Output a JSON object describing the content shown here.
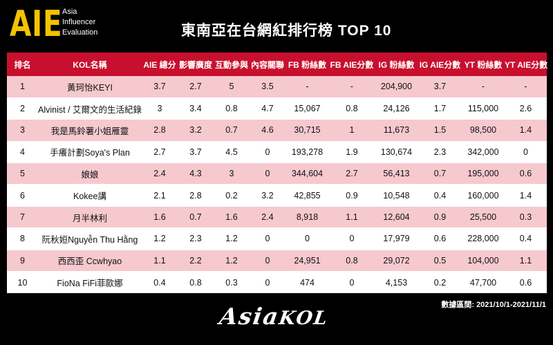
{
  "logo": {
    "mark": "AIE",
    "line1": "Asia",
    "line2": "Influencer",
    "line3": "Evaluation"
  },
  "title": "東南亞在台網紅排行榜 TOP 10",
  "table": {
    "headers": [
      "排名",
      "KOL名稱",
      "AIE 總分",
      "影響廣度",
      "互動參與",
      "內容關聯",
      "FB 粉絲數",
      "FB AIE分數",
      "IG 粉絲數",
      "IG AIE分數",
      "YT 粉絲數",
      "YT AIE分數"
    ],
    "rows": [
      [
        "1",
        "黃珂怡KEYI",
        "3.7",
        "2.7",
        "5",
        "3.5",
        "-",
        "-",
        "204,900",
        "3.7",
        "-",
        "-"
      ],
      [
        "2",
        "Alvinist / 艾爾文的生活紀錄",
        "3",
        "3.4",
        "0.8",
        "4.7",
        "15,067",
        "0.8",
        "24,126",
        "1.7",
        "115,000",
        "2.6"
      ],
      [
        "3",
        "我是馬鈴薯小姐雁靈",
        "2.8",
        "3.2",
        "0.7",
        "4.6",
        "30,715",
        "1",
        "11,673",
        "1.5",
        "98,500",
        "1.4"
      ],
      [
        "4",
        "手癢計劃Soya's Plan",
        "2.7",
        "3.7",
        "4.5",
        "0",
        "193,278",
        "1.9",
        "130,674",
        "2.3",
        "342,000",
        "0"
      ],
      [
        "5",
        "娘娘",
        "2.4",
        "4.3",
        "3",
        "0",
        "344,604",
        "2.7",
        "56,413",
        "0.7",
        "195,000",
        "0.6"
      ],
      [
        "6",
        "Kokee講",
        "2.1",
        "2.8",
        "0.2",
        "3.2",
        "42,855",
        "0.9",
        "10,548",
        "0.4",
        "160,000",
        "1.4"
      ],
      [
        "7",
        "月半林利",
        "1.6",
        "0.7",
        "1.6",
        "2.4",
        "8,918",
        "1.1",
        "12,604",
        "0.9",
        "25,500",
        "0.3"
      ],
      [
        "8",
        "阮秋姮Nguyễn Thu Hằng",
        "1.2",
        "2.3",
        "1.2",
        "0",
        "0",
        "0",
        "17,979",
        "0.6",
        "228,000",
        "0.4"
      ],
      [
        "9",
        "西西歪 Ccwhyao",
        "1.1",
        "2.2",
        "1.2",
        "0",
        "24,951",
        "0.8",
        "29,072",
        "0.5",
        "104,000",
        "1.1"
      ],
      [
        "10",
        "FioNa FiFi菲歐娜",
        "0.4",
        "0.8",
        "0.3",
        "0",
        "474",
        "0",
        "4,153",
        "0.2",
        "47,700",
        "0.6"
      ]
    ]
  },
  "date_range": "數據區間: 2021/10/1-2021/11/1",
  "brand": {
    "part1": "Asia",
    "part2": "KOL"
  },
  "colors": {
    "header_bg": "#c8102e",
    "odd_row_bg": "#f6c9ce",
    "logo_yellow": "#f3c300"
  }
}
